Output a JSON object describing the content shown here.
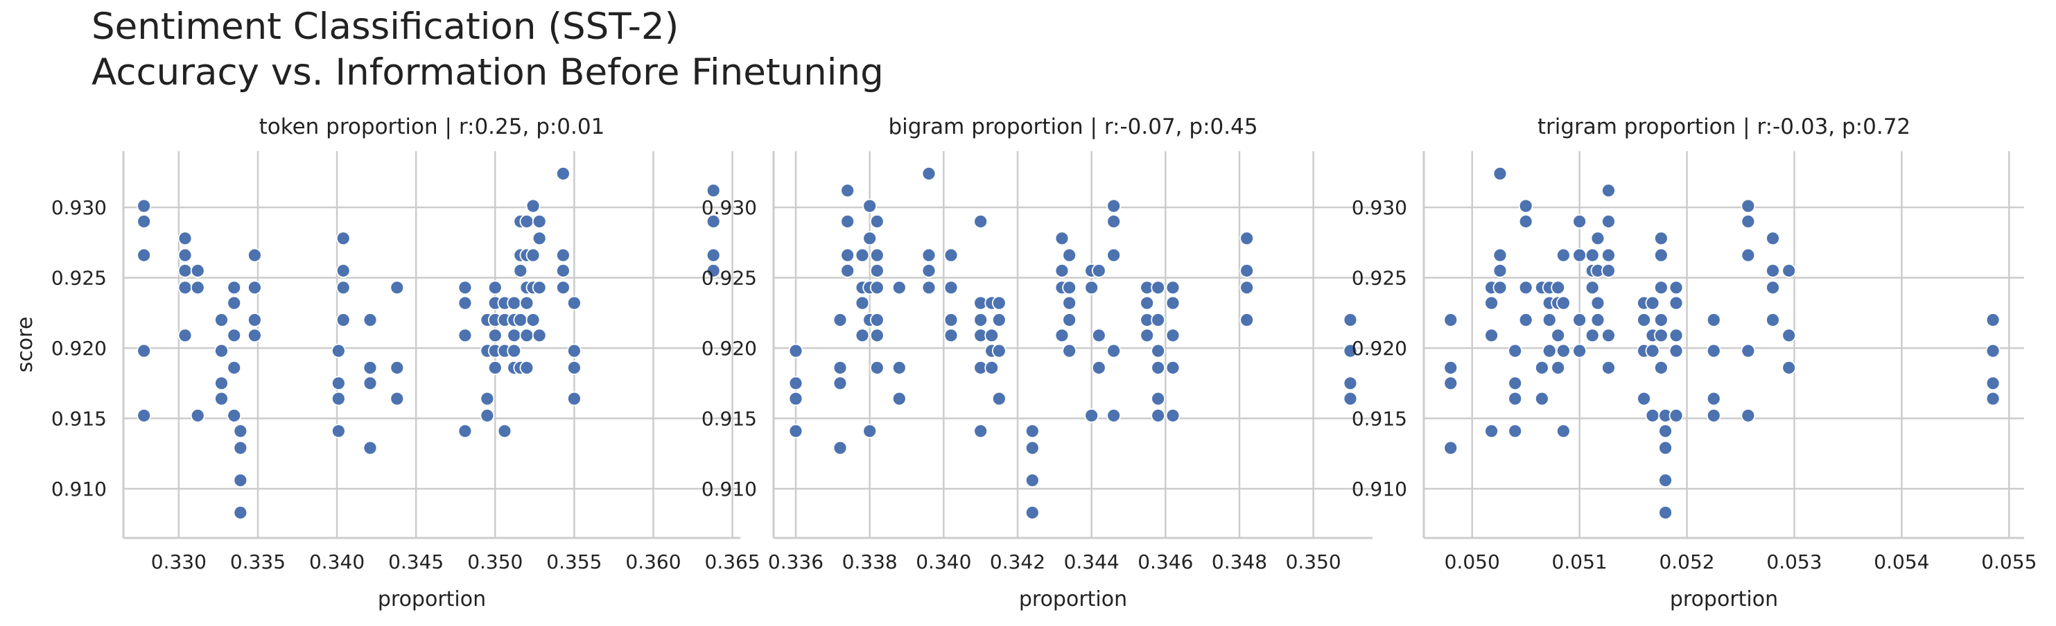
{
  "figure": {
    "title_line1": "Sentiment Classification (SST-2)",
    "title_line2": "Accuracy vs. Information Before Finetuning"
  },
  "chart_data": [
    {
      "type": "scatter",
      "title": "token proportion | r:0.25, p:0.01",
      "xlabel": "proportion",
      "ylabel": "score",
      "xlim": [
        0.3265,
        0.3655
      ],
      "ylim": [
        0.9065,
        0.934
      ],
      "xticks": [
        "0.330",
        "0.335",
        "0.340",
        "0.345",
        "0.350",
        "0.355",
        "0.360",
        "0.365"
      ],
      "yticks": [
        "0.910",
        "0.915",
        "0.920",
        "0.925",
        "0.930"
      ],
      "grid": true,
      "color": "#4c72b0",
      "points": [
        [
          0.3278,
          0.9301
        ],
        [
          0.3278,
          0.929
        ],
        [
          0.3278,
          0.9266
        ],
        [
          0.3278,
          0.9198
        ],
        [
          0.3278,
          0.9152
        ],
        [
          0.3304,
          0.9278
        ],
        [
          0.3304,
          0.9266
        ],
        [
          0.3304,
          0.9255
        ],
        [
          0.3304,
          0.9243
        ],
        [
          0.3304,
          0.9209
        ],
        [
          0.3312,
          0.9255
        ],
        [
          0.3312,
          0.9243
        ],
        [
          0.3312,
          0.9152
        ],
        [
          0.3327,
          0.922
        ],
        [
          0.3327,
          0.9198
        ],
        [
          0.3327,
          0.9175
        ],
        [
          0.3327,
          0.9164
        ],
        [
          0.3335,
          0.9243
        ],
        [
          0.3335,
          0.9232
        ],
        [
          0.3335,
          0.9209
        ],
        [
          0.3335,
          0.9186
        ],
        [
          0.3335,
          0.9152
        ],
        [
          0.3339,
          0.9141
        ],
        [
          0.3339,
          0.9129
        ],
        [
          0.3339,
          0.9106
        ],
        [
          0.3339,
          0.9083
        ],
        [
          0.3348,
          0.9266
        ],
        [
          0.3348,
          0.9243
        ],
        [
          0.3348,
          0.922
        ],
        [
          0.3348,
          0.9209
        ],
        [
          0.3401,
          0.9198
        ],
        [
          0.3401,
          0.9175
        ],
        [
          0.3401,
          0.9164
        ],
        [
          0.3401,
          0.9141
        ],
        [
          0.3404,
          0.9278
        ],
        [
          0.3404,
          0.9255
        ],
        [
          0.3404,
          0.9243
        ],
        [
          0.3404,
          0.922
        ],
        [
          0.3421,
          0.922
        ],
        [
          0.3421,
          0.9186
        ],
        [
          0.3421,
          0.9175
        ],
        [
          0.3421,
          0.9129
        ],
        [
          0.3438,
          0.9243
        ],
        [
          0.3438,
          0.9186
        ],
        [
          0.3438,
          0.9164
        ],
        [
          0.3481,
          0.9243
        ],
        [
          0.3481,
          0.9232
        ],
        [
          0.3481,
          0.9209
        ],
        [
          0.3481,
          0.9141
        ],
        [
          0.3495,
          0.922
        ],
        [
          0.3495,
          0.9198
        ],
        [
          0.3495,
          0.9164
        ],
        [
          0.3495,
          0.9152
        ],
        [
          0.35,
          0.9243
        ],
        [
          0.35,
          0.9232
        ],
        [
          0.35,
          0.922
        ],
        [
          0.35,
          0.9209
        ],
        [
          0.35,
          0.9198
        ],
        [
          0.35,
          0.9186
        ],
        [
          0.3506,
          0.9232
        ],
        [
          0.3506,
          0.922
        ],
        [
          0.3506,
          0.9198
        ],
        [
          0.3506,
          0.9141
        ],
        [
          0.3512,
          0.9232
        ],
        [
          0.3512,
          0.922
        ],
        [
          0.3512,
          0.9209
        ],
        [
          0.3512,
          0.9198
        ],
        [
          0.3512,
          0.9186
        ],
        [
          0.3516,
          0.929
        ],
        [
          0.3516,
          0.9266
        ],
        [
          0.3516,
          0.9255
        ],
        [
          0.3516,
          0.922
        ],
        [
          0.3516,
          0.9186
        ],
        [
          0.352,
          0.929
        ],
        [
          0.352,
          0.9266
        ],
        [
          0.352,
          0.9243
        ],
        [
          0.352,
          0.9232
        ],
        [
          0.352,
          0.9209
        ],
        [
          0.352,
          0.9186
        ],
        [
          0.3524,
          0.9301
        ],
        [
          0.3524,
          0.9266
        ],
        [
          0.3524,
          0.9243
        ],
        [
          0.3524,
          0.922
        ],
        [
          0.3528,
          0.929
        ],
        [
          0.3528,
          0.9278
        ],
        [
          0.3528,
          0.9243
        ],
        [
          0.3528,
          0.9209
        ],
        [
          0.3543,
          0.9324
        ],
        [
          0.3543,
          0.9266
        ],
        [
          0.3543,
          0.9255
        ],
        [
          0.3543,
          0.9243
        ],
        [
          0.355,
          0.9232
        ],
        [
          0.355,
          0.9198
        ],
        [
          0.355,
          0.9186
        ],
        [
          0.355,
          0.9164
        ],
        [
          0.3638,
          0.9312
        ],
        [
          0.3638,
          0.929
        ],
        [
          0.3638,
          0.9266
        ],
        [
          0.3638,
          0.9255
        ]
      ]
    },
    {
      "type": "scatter",
      "title": "bigram proportion | r:-0.07, p:0.45",
      "xlabel": "proportion",
      "ylabel": "",
      "xlim": [
        0.3354,
        0.3516
      ],
      "ylim": [
        0.9065,
        0.934
      ],
      "xticks": [
        "0.336",
        "0.338",
        "0.340",
        "0.342",
        "0.344",
        "0.346",
        "0.348",
        "0.350"
      ],
      "yticks": [
        "0.910",
        "0.915",
        "0.920",
        "0.925",
        "0.930"
      ],
      "grid": true,
      "color": "#4c72b0",
      "points": [
        [
          0.336,
          0.9198
        ],
        [
          0.336,
          0.9175
        ],
        [
          0.336,
          0.9164
        ],
        [
          0.336,
          0.9141
        ],
        [
          0.3372,
          0.922
        ],
        [
          0.3372,
          0.9186
        ],
        [
          0.3372,
          0.9175
        ],
        [
          0.3372,
          0.9129
        ],
        [
          0.3374,
          0.9312
        ],
        [
          0.3374,
          0.929
        ],
        [
          0.3374,
          0.9266
        ],
        [
          0.3374,
          0.9255
        ],
        [
          0.3378,
          0.9266
        ],
        [
          0.3378,
          0.9243
        ],
        [
          0.3378,
          0.9232
        ],
        [
          0.3378,
          0.9209
        ],
        [
          0.338,
          0.9301
        ],
        [
          0.338,
          0.9278
        ],
        [
          0.338,
          0.9243
        ],
        [
          0.338,
          0.922
        ],
        [
          0.338,
          0.9141
        ],
        [
          0.3382,
          0.929
        ],
        [
          0.3382,
          0.9266
        ],
        [
          0.3382,
          0.9255
        ],
        [
          0.3382,
          0.9243
        ],
        [
          0.3382,
          0.922
        ],
        [
          0.3382,
          0.9209
        ],
        [
          0.3382,
          0.9186
        ],
        [
          0.3388,
          0.9243
        ],
        [
          0.3388,
          0.9186
        ],
        [
          0.3388,
          0.9164
        ],
        [
          0.3396,
          0.9324
        ],
        [
          0.3396,
          0.9266
        ],
        [
          0.3396,
          0.9255
        ],
        [
          0.3396,
          0.9243
        ],
        [
          0.3402,
          0.9266
        ],
        [
          0.3402,
          0.9243
        ],
        [
          0.3402,
          0.922
        ],
        [
          0.3402,
          0.9209
        ],
        [
          0.341,
          0.929
        ],
        [
          0.341,
          0.9232
        ],
        [
          0.341,
          0.922
        ],
        [
          0.341,
          0.9209
        ],
        [
          0.341,
          0.9186
        ],
        [
          0.341,
          0.9141
        ],
        [
          0.3413,
          0.9232
        ],
        [
          0.3413,
          0.9209
        ],
        [
          0.3413,
          0.9198
        ],
        [
          0.3413,
          0.9186
        ],
        [
          0.3415,
          0.9232
        ],
        [
          0.3415,
          0.922
        ],
        [
          0.3415,
          0.9198
        ],
        [
          0.3415,
          0.9164
        ],
        [
          0.3424,
          0.9141
        ],
        [
          0.3424,
          0.9129
        ],
        [
          0.3424,
          0.9106
        ],
        [
          0.3424,
          0.9083
        ],
        [
          0.3432,
          0.9278
        ],
        [
          0.3432,
          0.9255
        ],
        [
          0.3432,
          0.9243
        ],
        [
          0.3432,
          0.9209
        ],
        [
          0.3434,
          0.9266
        ],
        [
          0.3434,
          0.9243
        ],
        [
          0.3434,
          0.9232
        ],
        [
          0.3434,
          0.922
        ],
        [
          0.3434,
          0.9198
        ],
        [
          0.344,
          0.9255
        ],
        [
          0.344,
          0.9243
        ],
        [
          0.344,
          0.9152
        ],
        [
          0.3442,
          0.9255
        ],
        [
          0.3442,
          0.9209
        ],
        [
          0.3442,
          0.9186
        ],
        [
          0.3446,
          0.9301
        ],
        [
          0.3446,
          0.929
        ],
        [
          0.3446,
          0.9266
        ],
        [
          0.3446,
          0.9198
        ],
        [
          0.3446,
          0.9152
        ],
        [
          0.3455,
          0.9243
        ],
        [
          0.3455,
          0.9232
        ],
        [
          0.3455,
          0.922
        ],
        [
          0.3455,
          0.9209
        ],
        [
          0.3458,
          0.9243
        ],
        [
          0.3458,
          0.922
        ],
        [
          0.3458,
          0.9198
        ],
        [
          0.3458,
          0.9186
        ],
        [
          0.3458,
          0.9164
        ],
        [
          0.3458,
          0.9152
        ],
        [
          0.3462,
          0.9243
        ],
        [
          0.3462,
          0.9232
        ],
        [
          0.3462,
          0.9209
        ],
        [
          0.3462,
          0.9186
        ],
        [
          0.3462,
          0.9152
        ],
        [
          0.3482,
          0.9278
        ],
        [
          0.3482,
          0.9255
        ],
        [
          0.3482,
          0.9243
        ],
        [
          0.3482,
          0.922
        ],
        [
          0.351,
          0.922
        ],
        [
          0.351,
          0.9198
        ],
        [
          0.351,
          0.9175
        ],
        [
          0.351,
          0.9164
        ]
      ]
    },
    {
      "type": "scatter",
      "title": "trigram proportion | r:-0.03, p:0.72",
      "xlabel": "proportion",
      "ylabel": "",
      "xlim": [
        0.04955,
        0.05514
      ],
      "ylim": [
        0.9065,
        0.934
      ],
      "xticks": [
        "0.050",
        "0.051",
        "0.052",
        "0.053",
        "0.054",
        "0.055"
      ],
      "yticks": [
        "0.910",
        "0.915",
        "0.920",
        "0.925",
        "0.930"
      ],
      "grid": true,
      "color": "#4c72b0",
      "points": [
        [
          0.0498,
          0.922
        ],
        [
          0.0498,
          0.9186
        ],
        [
          0.0498,
          0.9175
        ],
        [
          0.0498,
          0.9129
        ],
        [
          0.05018,
          0.9243
        ],
        [
          0.05018,
          0.9232
        ],
        [
          0.05018,
          0.9209
        ],
        [
          0.05018,
          0.9141
        ],
        [
          0.05026,
          0.9324
        ],
        [
          0.05026,
          0.9266
        ],
        [
          0.05026,
          0.9255
        ],
        [
          0.05026,
          0.9243
        ],
        [
          0.0504,
          0.9198
        ],
        [
          0.0504,
          0.9175
        ],
        [
          0.0504,
          0.9164
        ],
        [
          0.0504,
          0.9141
        ],
        [
          0.0505,
          0.9301
        ],
        [
          0.0505,
          0.929
        ],
        [
          0.0505,
          0.9243
        ],
        [
          0.0505,
          0.922
        ],
        [
          0.05065,
          0.9243
        ],
        [
          0.05065,
          0.9186
        ],
        [
          0.05065,
          0.9164
        ],
        [
          0.05072,
          0.9243
        ],
        [
          0.05072,
          0.9232
        ],
        [
          0.05072,
          0.922
        ],
        [
          0.05072,
          0.9198
        ],
        [
          0.0508,
          0.9243
        ],
        [
          0.0508,
          0.9232
        ],
        [
          0.0508,
          0.9209
        ],
        [
          0.0508,
          0.9186
        ],
        [
          0.05085,
          0.9266
        ],
        [
          0.05085,
          0.9232
        ],
        [
          0.05085,
          0.9198
        ],
        [
          0.05085,
          0.9141
        ],
        [
          0.051,
          0.929
        ],
        [
          0.051,
          0.9266
        ],
        [
          0.051,
          0.922
        ],
        [
          0.051,
          0.9198
        ],
        [
          0.05112,
          0.9266
        ],
        [
          0.05112,
          0.9255
        ],
        [
          0.05112,
          0.9243
        ],
        [
          0.05112,
          0.9209
        ],
        [
          0.05117,
          0.9278
        ],
        [
          0.05117,
          0.9255
        ],
        [
          0.05117,
          0.9232
        ],
        [
          0.05117,
          0.922
        ],
        [
          0.05127,
          0.9312
        ],
        [
          0.05127,
          0.929
        ],
        [
          0.05127,
          0.9266
        ],
        [
          0.05127,
          0.9255
        ],
        [
          0.05127,
          0.9209
        ],
        [
          0.05127,
          0.9186
        ],
        [
          0.0516,
          0.9232
        ],
        [
          0.0516,
          0.922
        ],
        [
          0.0516,
          0.9198
        ],
        [
          0.0516,
          0.9164
        ],
        [
          0.05168,
          0.9232
        ],
        [
          0.05168,
          0.9209
        ],
        [
          0.05168,
          0.9198
        ],
        [
          0.05168,
          0.9152
        ],
        [
          0.05176,
          0.9278
        ],
        [
          0.05176,
          0.9266
        ],
        [
          0.05176,
          0.9243
        ],
        [
          0.05176,
          0.922
        ],
        [
          0.05176,
          0.9209
        ],
        [
          0.05176,
          0.9186
        ],
        [
          0.0518,
          0.9152
        ],
        [
          0.0518,
          0.9141
        ],
        [
          0.0518,
          0.9129
        ],
        [
          0.0518,
          0.9106
        ],
        [
          0.0518,
          0.9083
        ],
        [
          0.0519,
          0.9243
        ],
        [
          0.0519,
          0.9232
        ],
        [
          0.0519,
          0.9209
        ],
        [
          0.0519,
          0.9198
        ],
        [
          0.0519,
          0.9152
        ],
        [
          0.05225,
          0.922
        ],
        [
          0.05225,
          0.9198
        ],
        [
          0.05225,
          0.9164
        ],
        [
          0.05225,
          0.9152
        ],
        [
          0.05257,
          0.9301
        ],
        [
          0.05257,
          0.929
        ],
        [
          0.05257,
          0.9266
        ],
        [
          0.05257,
          0.9198
        ],
        [
          0.05257,
          0.9152
        ],
        [
          0.0528,
          0.9278
        ],
        [
          0.0528,
          0.9255
        ],
        [
          0.0528,
          0.9243
        ],
        [
          0.0528,
          0.922
        ],
        [
          0.05295,
          0.9255
        ],
        [
          0.05295,
          0.9209
        ],
        [
          0.05295,
          0.9186
        ],
        [
          0.05485,
          0.922
        ],
        [
          0.05485,
          0.9198
        ],
        [
          0.05485,
          0.9175
        ],
        [
          0.05485,
          0.9164
        ]
      ]
    }
  ]
}
